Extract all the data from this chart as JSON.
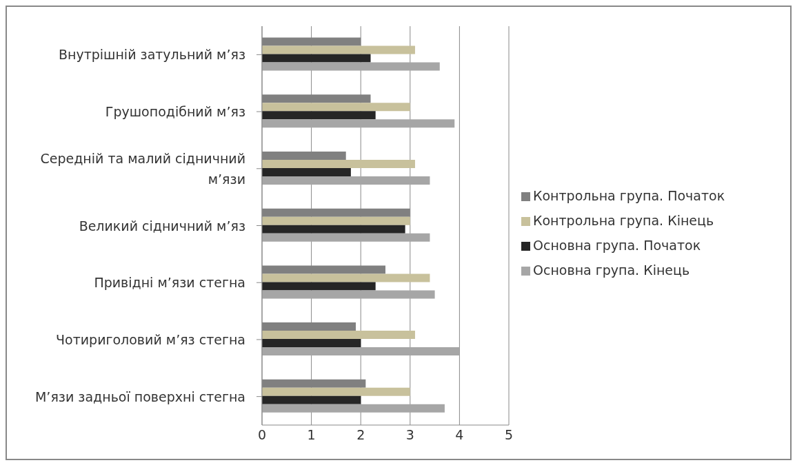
{
  "chart_data": {
    "type": "bar",
    "orientation": "horizontal",
    "categories": [
      "Внутрішній затульний м’яз",
      "Грушоподібний м’яз",
      "Середній та малий сідничний м’язи",
      "Великий сідничний м’яз",
      "Привідні м’язи стегна",
      "Чотириголовий м’яз стегна",
      "М’язи задньої поверхні стегна"
    ],
    "series": [
      {
        "name": "Контрольна група. Початок",
        "color": "#808080",
        "values": [
          2.0,
          2.2,
          1.7,
          3.0,
          2.5,
          1.9,
          2.1
        ]
      },
      {
        "name": "Контрольна група. Кінець",
        "color": "#c8c19c",
        "values": [
          3.1,
          3.0,
          3.1,
          3.0,
          3.4,
          3.1,
          3.0
        ]
      },
      {
        "name": "Основна група. Початок",
        "color": "#262626",
        "values": [
          2.2,
          2.3,
          1.8,
          2.9,
          2.3,
          2.0,
          2.0
        ]
      },
      {
        "name": "Основна група. Кінець",
        "color": "#a6a6a6",
        "values": [
          3.6,
          3.9,
          3.4,
          3.4,
          3.5,
          4.0,
          3.7
        ]
      }
    ],
    "xlim": [
      0,
      5
    ],
    "xticks": [
      0,
      1,
      2,
      3,
      4,
      5
    ],
    "grid": "x",
    "legend": "right"
  }
}
